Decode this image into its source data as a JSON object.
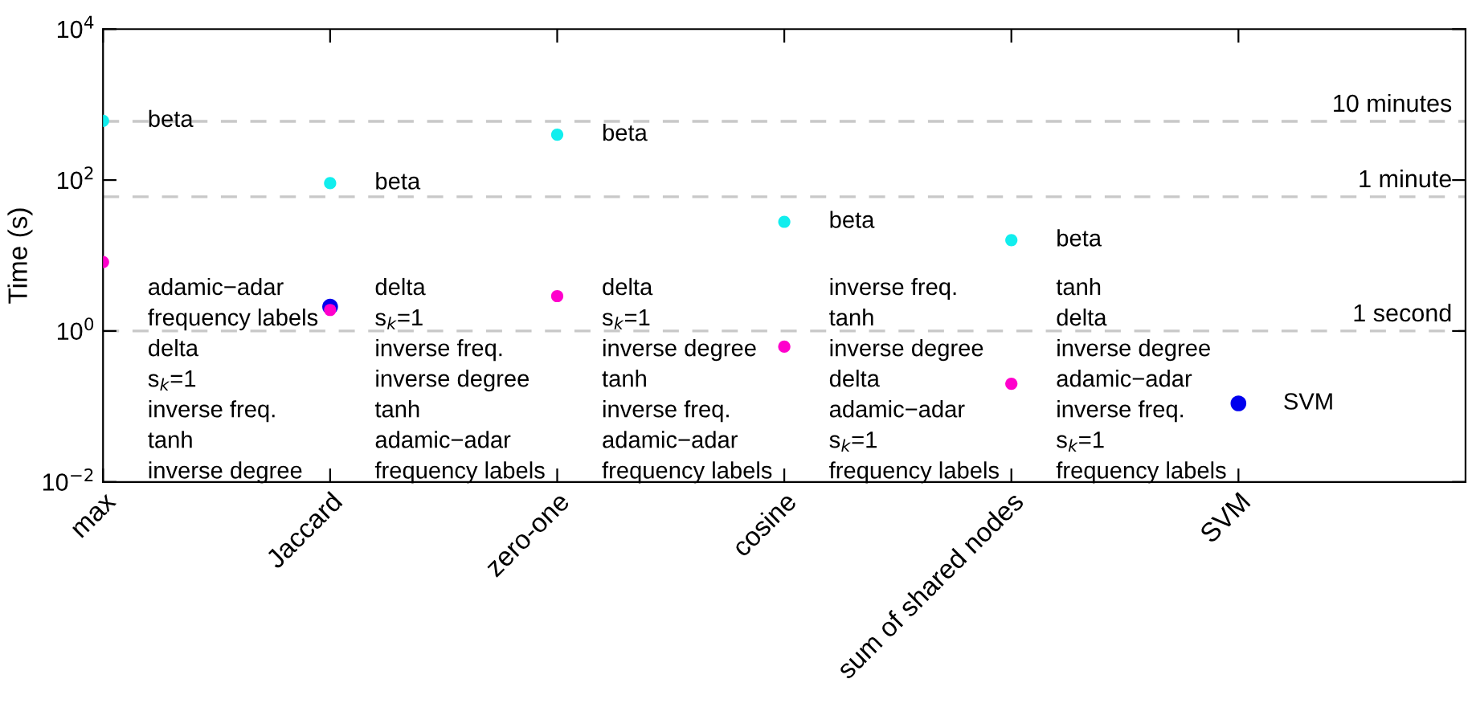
{
  "chart_data": {
    "type": "scatter",
    "ylabel": "Time (s)",
    "log": "y",
    "grid": false,
    "legend": false,
    "marker": "circle",
    "categories": [
      "max",
      "Jaccard",
      "zero-one",
      "cosine",
      "sum of shared nodes",
      "SVM"
    ],
    "ylim": [
      0.01,
      10000
    ],
    "yticks": [
      {
        "value": 0.01,
        "label": "10$^{−2}$"
      },
      {
        "value": 1,
        "label": "10$^{0}$"
      },
      {
        "value": 100,
        "label": "10$^{2}$"
      },
      {
        "value": 10000,
        "label": "10$^{4}$"
      }
    ],
    "series": [
      {
        "color": "#0000ee",
        "values": [
          null,
          2.1,
          null,
          null,
          null,
          0.11
        ]
      },
      {
        "color": "#ff00cc",
        "values": [
          8.2,
          1.9,
          2.9,
          0.62,
          0.2,
          null
        ]
      },
      {
        "color": "#11eeee",
        "values": [
          610,
          91,
          400,
          28,
          16,
          null
        ]
      }
    ],
    "ref_lines": [
      {
        "axis": "y",
        "value": 600,
        "label": "10 minutes",
        "color": "#c8c8c8",
        "line_style": "dashed"
      },
      {
        "axis": "y",
        "value": 60,
        "label": "1 minute",
        "color": "#c8c8c8",
        "line_style": "dashed"
      },
      {
        "axis": "y",
        "value": 1,
        "label": "1 second",
        "color": "#c8c8c8",
        "line_style": "dashed"
      }
    ],
    "annotations": [
      {
        "text": "beta",
        "x": "max",
        "y": 610
      },
      {
        "text": "beta",
        "x": "Jaccard",
        "y": 91
      },
      {
        "text": "beta",
        "x": "zero-one",
        "y": 400
      },
      {
        "text": "beta",
        "x": "cosine",
        "y": 28
      },
      {
        "text": "beta",
        "x": "sum of shared nodes",
        "y": 16
      },
      {
        "text": "SVM",
        "x": "SVM",
        "y": 0.11
      },
      "adamic−adar",
      "frequency labels",
      "delta",
      "s$_{k}$=1",
      "inverse freq.",
      "tanh",
      "inverse degree",
      "delta",
      "s$_{k}$=1",
      "inverse freq.",
      "inverse degree",
      "tanh",
      "adamic−adar",
      "frequency labels",
      "delta",
      "s$_{k}$=1",
      "inverse degree",
      "tanh",
      "inverse freq.",
      "adamic−adar",
      "frequency labels",
      "inverse freq.",
      "tanh",
      "inverse degree",
      "delta",
      "adamic−adar",
      "s$_{k}$=1",
      "frequency labels",
      "tanh",
      "delta",
      "inverse degree",
      "adamic−adar",
      "inverse freq.",
      "s$_{k}$=1",
      "frequency labels"
    ]
  }
}
